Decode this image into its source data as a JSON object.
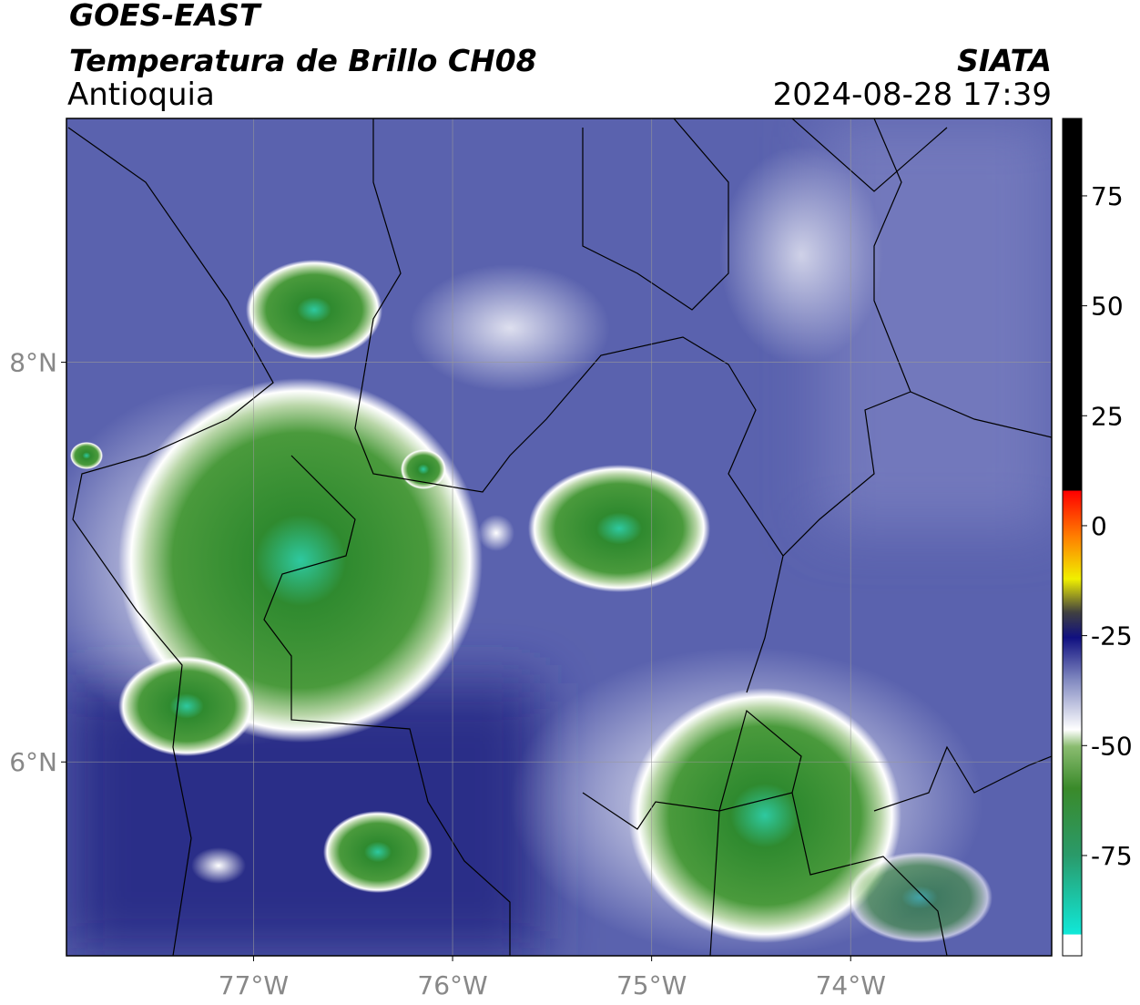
{
  "header": {
    "title": "GOES-EAST",
    "subtitle": "Temperatura de Brillo CH08",
    "region": "Antioquia",
    "source": "SIATA",
    "datetime": "2024-08-28 17:39"
  },
  "map": {
    "xlim": [
      -77.94,
      -72.99
    ],
    "ylim": [
      5.03,
      9.22
    ],
    "xticks": [
      {
        "value": -77,
        "label": "77°W"
      },
      {
        "value": -76,
        "label": "76°W"
      },
      {
        "value": -75,
        "label": "75°W"
      },
      {
        "value": -74,
        "label": "74°W"
      }
    ],
    "yticks": [
      {
        "value": 6,
        "label": "6°N"
      },
      {
        "value": 8,
        "label": "8°N"
      }
    ],
    "grid": true
  },
  "colorbar": {
    "lim": [
      -97.8,
      92.6
    ],
    "ticks": [
      -75,
      -50,
      -25,
      0,
      25,
      50,
      75
    ]
  }
}
